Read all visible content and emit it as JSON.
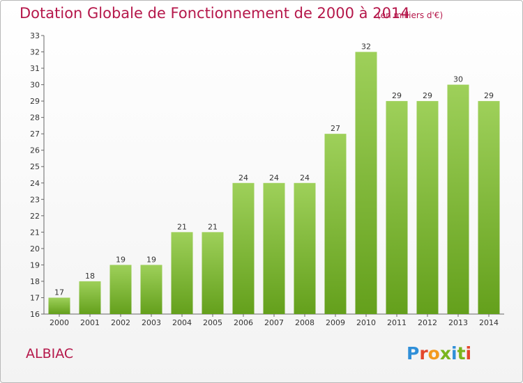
{
  "chart_data": {
    "type": "bar",
    "title": "Dotation Globale de Fonctionnement de 2000 à 2014",
    "subtitle": "(en milliers d'€)",
    "categories": [
      "2000",
      "2001",
      "2002",
      "2003",
      "2004",
      "2005",
      "2006",
      "2007",
      "2008",
      "2009",
      "2010",
      "2011",
      "2012",
      "2013",
      "2014"
    ],
    "values": [
      17,
      18,
      19,
      19,
      21,
      21,
      24,
      24,
      24,
      27,
      32,
      29,
      29,
      30,
      29
    ],
    "ylim": [
      16,
      33
    ],
    "yticks": [
      16,
      17,
      18,
      19,
      20,
      21,
      22,
      23,
      24,
      25,
      26,
      27,
      28,
      29,
      30,
      31,
      32,
      33
    ],
    "ytick_labels": [
      "16",
      "17",
      "18",
      "19",
      "20",
      "21",
      "22",
      "23",
      "24",
      "25",
      "26",
      "27",
      "28",
      "29",
      "30",
      "31",
      "32",
      "33"
    ],
    "grid": false,
    "xlabel": "",
    "ylabel": "",
    "bar_color_top": "#9ed05a",
    "bar_color_bottom": "#64a01c"
  },
  "footer": {
    "place": "ALBIAC",
    "brand": "Proxiti"
  },
  "colors": {
    "accent": "#b5174a"
  }
}
